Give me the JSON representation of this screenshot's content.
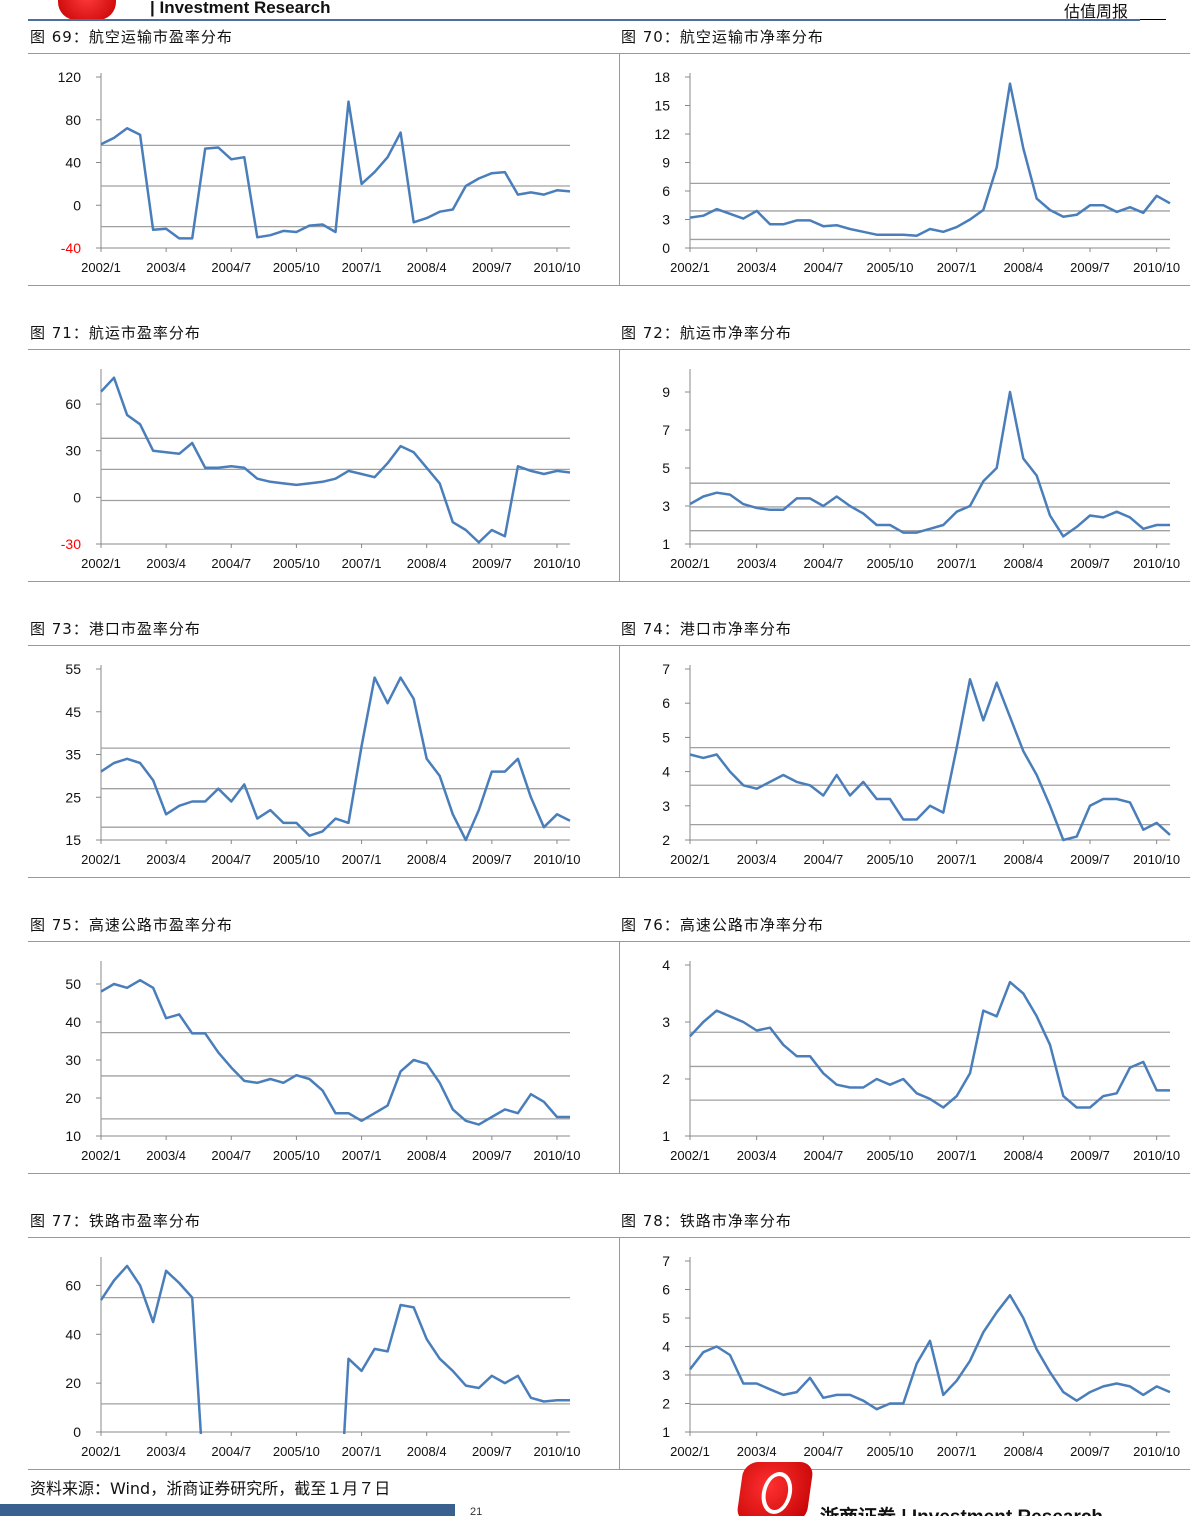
{
  "header": {
    "title": "| Investment Research",
    "report_type": "估值周报"
  },
  "footer": {
    "source": "资料来源：Wind，浙商证券研究所，截至１月７日",
    "page": "21",
    "brand": "浙商证券 | Investment Research"
  },
  "style": {
    "series_color": "#4a7ebb",
    "reference_line_color": "#a0a0a0",
    "neg_tick_color": "#ff0000",
    "header_line_color": "#4a6fa0"
  },
  "xticks": [
    "2002/1",
    "2003/4",
    "2004/7",
    "2005/10",
    "2007/1",
    "2008/4",
    "2009/7",
    "2010/10"
  ],
  "chart_data": [
    {
      "type": "line",
      "title": "图 69：航空运输市盈率分布",
      "ylim": [
        -40,
        120
      ],
      "yticks": [
        -40,
        0,
        40,
        80,
        120
      ],
      "reference_lines": [
        56,
        18,
        -20
      ],
      "values": [
        57,
        63,
        72,
        66,
        -23,
        -22,
        -31,
        -31,
        53,
        54,
        43,
        45,
        -30,
        -28,
        -24,
        -25,
        -19,
        -18,
        -25,
        97,
        20,
        31,
        45,
        68,
        -16,
        -12,
        -6,
        -4,
        18,
        25,
        30,
        31,
        10,
        12,
        10,
        14,
        13
      ]
    },
    {
      "type": "line",
      "title": "图 70：航空运输市净率分布",
      "ylim": [
        0,
        18
      ],
      "yticks": [
        0,
        3,
        6,
        9,
        12,
        15,
        18
      ],
      "reference_lines": [
        6.8,
        3.9,
        0.9
      ],
      "values": [
        3.2,
        3.4,
        4.1,
        3.6,
        3.1,
        3.9,
        2.5,
        2.5,
        2.9,
        2.9,
        2.3,
        2.4,
        2.0,
        1.7,
        1.4,
        1.4,
        1.4,
        1.3,
        2.0,
        1.7,
        2.2,
        3.0,
        4.0,
        8.5,
        17.3,
        10.5,
        5.2,
        4.0,
        3.3,
        3.5,
        4.5,
        4.5,
        3.8,
        4.3,
        3.7,
        5.5,
        4.7
      ]
    },
    {
      "type": "line",
      "title": "图 71：航运市盈率分布",
      "ylim": [
        -30,
        80
      ],
      "yticks": [
        -30,
        0,
        30,
        60
      ],
      "reference_lines": [
        38,
        18,
        -2
      ],
      "values": [
        68,
        77,
        53,
        47,
        30,
        29,
        28,
        35,
        19,
        19,
        20,
        19,
        12,
        10,
        9,
        8,
        9,
        10,
        12,
        17,
        15,
        13,
        22,
        33,
        29,
        19,
        9,
        -16,
        -21,
        -29,
        -21,
        -25,
        20,
        17,
        15,
        17,
        16
      ]
    },
    {
      "type": "line",
      "title": "图 72：航运市净率分布",
      "ylim": [
        1,
        10
      ],
      "yticks": [
        1,
        3,
        5,
        7,
        9
      ],
      "reference_lines": [
        4.2,
        2.95,
        1.7
      ],
      "values": [
        3.1,
        3.5,
        3.7,
        3.6,
        3.1,
        2.9,
        2.8,
        2.8,
        3.4,
        3.4,
        3.0,
        3.5,
        3.0,
        2.6,
        2.0,
        2.0,
        1.6,
        1.6,
        1.8,
        2.0,
        2.7,
        3.0,
        4.3,
        5.0,
        9.0,
        5.5,
        4.6,
        2.5,
        1.4,
        1.9,
        2.5,
        2.4,
        2.7,
        2.4,
        1.8,
        2.0,
        2.0
      ]
    },
    {
      "type": "line",
      "title": "图 73：港口市盈率分布",
      "ylim": [
        15,
        55
      ],
      "yticks": [
        15,
        25,
        35,
        45,
        55
      ],
      "reference_lines": [
        36.5,
        27,
        18
      ],
      "values": [
        31,
        33,
        34,
        33,
        29,
        21,
        23,
        24,
        24,
        27,
        24,
        28,
        20,
        22,
        19,
        19,
        16,
        17,
        20,
        19,
        37,
        53,
        47,
        53,
        48,
        34,
        30,
        21,
        15,
        22,
        31,
        31,
        34,
        25,
        18,
        21,
        19.5
      ]
    },
    {
      "type": "line",
      "title": "图 74：港口市净率分布",
      "ylim": [
        2,
        7
      ],
      "yticks": [
        2,
        3,
        4,
        5,
        6,
        7
      ],
      "reference_lines": [
        4.7,
        3.6,
        2.45
      ],
      "values": [
        4.5,
        4.4,
        4.5,
        4.0,
        3.6,
        3.5,
        3.7,
        3.9,
        3.7,
        3.6,
        3.3,
        3.9,
        3.3,
        3.7,
        3.2,
        3.2,
        2.6,
        2.6,
        3.0,
        2.8,
        4.7,
        6.7,
        5.5,
        6.6,
        5.6,
        4.6,
        3.9,
        3.0,
        2.0,
        2.1,
        3.0,
        3.2,
        3.2,
        3.1,
        2.3,
        2.5,
        2.15
      ]
    },
    {
      "type": "line",
      "title": "图 75：高速公路市盈率分布",
      "ylim": [
        10,
        55
      ],
      "yticks": [
        10,
        20,
        30,
        40,
        50
      ],
      "reference_lines": [
        37.2,
        25.8,
        14.5
      ],
      "values": [
        48,
        50,
        49,
        51,
        49,
        41,
        42,
        37,
        37,
        32,
        28,
        24.5,
        24,
        25,
        24,
        26,
        25,
        22,
        16,
        16,
        14,
        16,
        18,
        27,
        30,
        29,
        24,
        17,
        14,
        13,
        15,
        17,
        16,
        21,
        19,
        15,
        15
      ]
    },
    {
      "type": "line",
      "title": "图 76：高速公路市净率分布",
      "ylim": [
        1,
        4
      ],
      "yticks": [
        1,
        2,
        3,
        4
      ],
      "reference_lines": [
        2.82,
        2.22,
        1.63
      ],
      "values": [
        2.75,
        3.0,
        3.2,
        3.1,
        3.0,
        2.85,
        2.9,
        2.6,
        2.4,
        2.4,
        2.1,
        1.9,
        1.85,
        1.85,
        2.0,
        1.9,
        2.0,
        1.75,
        1.65,
        1.5,
        1.7,
        2.1,
        3.2,
        3.1,
        3.7,
        3.5,
        3.1,
        2.6,
        1.7,
        1.5,
        1.5,
        1.7,
        1.75,
        2.2,
        2.3,
        1.8,
        1.8
      ]
    },
    {
      "type": "line",
      "title": "图 77：铁路市盈率分布",
      "ylim": [
        0,
        70
      ],
      "yticks": [
        0,
        20,
        40,
        60
      ],
      "reference_lines": [
        55,
        11.5
      ],
      "values": [
        54,
        62,
        68,
        60,
        45,
        66,
        61,
        55,
        null,
        null,
        null,
        null,
        null,
        null,
        null,
        null,
        null,
        null,
        null,
        30,
        25,
        34,
        33,
        52,
        51,
        38,
        30,
        25,
        19,
        18,
        23,
        20,
        23,
        14,
        12.5,
        13,
        13
      ]
    },
    {
      "type": "line",
      "title": "图 78：铁路市净率分布",
      "ylim": [
        1,
        7
      ],
      "yticks": [
        1,
        2,
        3,
        4,
        5,
        6,
        7
      ],
      "reference_lines": [
        4.0,
        3.0,
        1.97
      ],
      "values": [
        3.2,
        3.8,
        4.0,
        3.7,
        2.7,
        2.7,
        2.5,
        2.3,
        2.4,
        2.9,
        2.2,
        2.3,
        2.3,
        2.1,
        1.8,
        2.0,
        2.0,
        3.4,
        4.2,
        2.3,
        2.8,
        3.5,
        4.5,
        5.2,
        5.8,
        5.0,
        3.9,
        3.1,
        2.4,
        2.1,
        2.4,
        2.6,
        2.7,
        2.6,
        2.3,
        2.6,
        2.4
      ]
    }
  ]
}
